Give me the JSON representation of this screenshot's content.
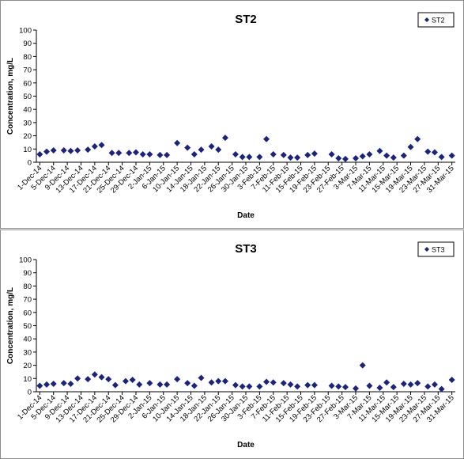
{
  "chart_data": [
    {
      "type": "scatter",
      "title": "ST2",
      "xlabel": "Date",
      "ylabel": "Concentration, mg/L",
      "ylim": [
        0,
        100
      ],
      "yticks": [
        0,
        10,
        20,
        30,
        40,
        50,
        60,
        70,
        80,
        90,
        100
      ],
      "xticks": [
        "1-Dec-14",
        "5-Dec-14",
        "9-Dec-14",
        "13-Dec-14",
        "17-Dec-14",
        "21-Dec-14",
        "25-Dec-14",
        "29-Dec-14",
        "2-Jan-15",
        "6-Jan-15",
        "10-Jan-15",
        "14-Jan-15",
        "18-Jan-15",
        "22-Jan-15",
        "26-Jan-15",
        "30-Jan-15",
        "3-Feb-15",
        "7-Feb-15",
        "11-Feb-15",
        "15-Feb-15",
        "19-Feb-15",
        "23-Feb-15",
        "27-Feb-15",
        "3-Mar-15",
        "7-Mar-15",
        "11-Mar-15",
        "15-Mar-15",
        "19-Mar-15",
        "23-Mar-15",
        "27-Mar-15",
        "31-Mar-15"
      ],
      "legend": "top-right",
      "grid": false,
      "color": "#1a237e",
      "series": [
        {
          "name": "ST2",
          "x": [
            "1-Dec-14",
            "3-Dec-14",
            "5-Dec-14",
            "8-Dec-14",
            "10-Dec-14",
            "12-Dec-14",
            "15-Dec-14",
            "17-Dec-14",
            "19-Dec-14",
            "22-Dec-14",
            "24-Dec-14",
            "27-Dec-14",
            "29-Dec-14",
            "31-Dec-14",
            "2-Jan-15",
            "5-Jan-15",
            "7-Jan-15",
            "10-Jan-15",
            "13-Jan-15",
            "15-Jan-15",
            "17-Jan-15",
            "20-Jan-15",
            "22-Jan-15",
            "24-Jan-15",
            "27-Jan-15",
            "29-Jan-15",
            "31-Jan-15",
            "3-Feb-15",
            "5-Feb-15",
            "7-Feb-15",
            "10-Feb-15",
            "12-Feb-15",
            "14-Feb-15",
            "17-Feb-15",
            "19-Feb-15",
            "24-Feb-15",
            "26-Feb-15",
            "28-Feb-15",
            "3-Mar-15",
            "5-Mar-15",
            "7-Mar-15",
            "10-Mar-15",
            "12-Mar-15",
            "14-Mar-15",
            "17-Mar-15",
            "19-Mar-15",
            "21-Mar-15",
            "24-Mar-15",
            "26-Mar-15",
            "28-Mar-15",
            "31-Mar-15"
          ],
          "values": [
            6,
            8,
            9,
            9,
            8.5,
            9,
            9.5,
            12,
            13,
            7,
            7,
            7,
            7.5,
            6,
            6,
            5.5,
            5.5,
            14.5,
            11,
            6,
            9.5,
            12,
            9.5,
            18.5,
            6,
            4,
            4,
            4,
            17.5,
            6,
            5.5,
            3.5,
            3.5,
            5.5,
            6.5,
            6,
            3,
            2.5,
            3,
            4.5,
            6,
            8.5,
            5,
            3.5,
            5,
            11.5,
            17.5,
            8,
            7.5,
            4,
            5
          ]
        }
      ]
    },
    {
      "type": "scatter",
      "title": "ST3",
      "xlabel": "Date",
      "ylabel": "Concentration, mg/L",
      "ylim": [
        0,
        100
      ],
      "yticks": [
        0,
        10,
        20,
        30,
        40,
        50,
        60,
        70,
        80,
        90,
        100
      ],
      "xticks": [
        "1-Dec-14",
        "5-Dec-14",
        "9-Dec-14",
        "13-Dec-14",
        "17-Dec-14",
        "21-Dec-14",
        "25-Dec-14",
        "29-Dec-14",
        "2-Jan-15",
        "6-Jan-15",
        "10-Jan-15",
        "14-Jan-15",
        "18-Jan-15",
        "22-Jan-15",
        "26-Jan-15",
        "30-Jan-15",
        "3-Feb-15",
        "7-Feb-15",
        "11-Feb-15",
        "15-Feb-15",
        "19-Feb-15",
        "23-Feb-15",
        "27-Feb-15",
        "3-Mar-15",
        "7-Mar-15",
        "11-Mar-15",
        "15-Mar-15",
        "19-Mar-15",
        "23-Mar-15",
        "27-Mar-15",
        "31-Mar-15"
      ],
      "legend": "top-right",
      "grid": false,
      "color": "#1a237e",
      "series": [
        {
          "name": "ST3",
          "x": [
            "1-Dec-14",
            "3-Dec-14",
            "5-Dec-14",
            "8-Dec-14",
            "10-Dec-14",
            "12-Dec-14",
            "15-Dec-14",
            "17-Dec-14",
            "19-Dec-14",
            "21-Dec-14",
            "23-Dec-14",
            "26-Dec-14",
            "28-Dec-14",
            "30-Dec-14",
            "2-Jan-15",
            "5-Jan-15",
            "7-Jan-15",
            "10-Jan-15",
            "13-Jan-15",
            "15-Jan-15",
            "17-Jan-15",
            "20-Jan-15",
            "22-Jan-15",
            "24-Jan-15",
            "27-Jan-15",
            "29-Jan-15",
            "31-Jan-15",
            "3-Feb-15",
            "5-Feb-15",
            "7-Feb-15",
            "10-Feb-15",
            "12-Feb-15",
            "14-Feb-15",
            "17-Feb-15",
            "19-Feb-15",
            "24-Feb-15",
            "26-Feb-15",
            "28-Feb-15",
            "3-Mar-15",
            "5-Mar-15",
            "7-Mar-15",
            "10-Mar-15",
            "12-Mar-15",
            "14-Mar-15",
            "17-Mar-15",
            "19-Mar-15",
            "21-Mar-15",
            "24-Mar-15",
            "26-Mar-15",
            "28-Mar-15",
            "31-Mar-15"
          ],
          "values": [
            4.5,
            5.5,
            6,
            6.5,
            6,
            10,
            9.5,
            13,
            11,
            9.5,
            5,
            8,
            9,
            5.5,
            6.5,
            5.5,
            5.5,
            9.5,
            6.5,
            4.5,
            10.5,
            7,
            8,
            8,
            5,
            4,
            4,
            4,
            7.5,
            7,
            6.5,
            5.5,
            4,
            5,
            5,
            4.5,
            4,
            3.5,
            2.5,
            20,
            4.5,
            3,
            7,
            3.5,
            6,
            5.5,
            6.5,
            4,
            5.5,
            2,
            9
          ]
        }
      ]
    }
  ]
}
